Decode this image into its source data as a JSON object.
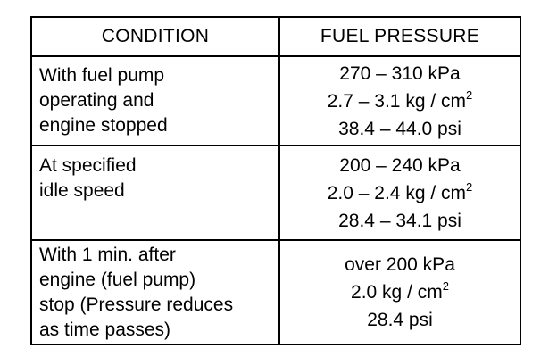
{
  "table": {
    "headers": {
      "condition": "CONDITION",
      "pressure": "FUEL PRESSURE"
    },
    "rows": [
      {
        "condition_lines": [
          "With fuel pump",
          "operating and",
          "engine stopped"
        ],
        "kpa": "270 – 310 kPa",
        "kgcm_value": "2.7 – 3.1 kg / cm",
        "kgcm_exp": "2",
        "psi": "38.4 – 44.0 psi"
      },
      {
        "condition_lines": [
          "At specified",
          "idle speed"
        ],
        "kpa": "200 – 240 kPa",
        "kgcm_value": "2.0 – 2.4 kg / cm",
        "kgcm_exp": "2",
        "psi": "28.4 – 34.1 psi"
      },
      {
        "condition_lines": [
          "With 1 min. after",
          "engine (fuel pump)",
          "stop (Pressure reduces",
          "as time passes)"
        ],
        "kpa": "over 200 kPa",
        "kgcm_value": "2.0 kg / cm",
        "kgcm_exp": "2",
        "psi": "28.4 psi"
      }
    ]
  }
}
